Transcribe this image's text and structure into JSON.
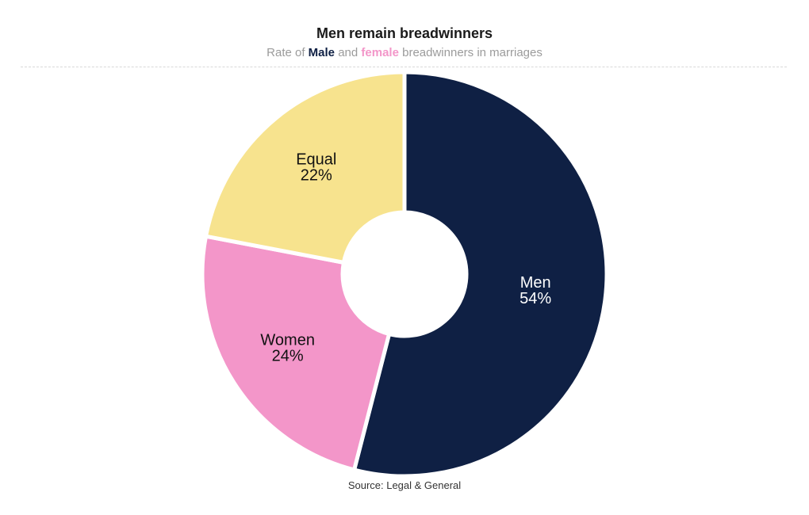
{
  "chart_data": {
    "type": "pie",
    "title": "Men remain breadwinners",
    "subtitle": {
      "prefix": "Rate of ",
      "male": "Male",
      "middle": " and ",
      "female": "female",
      "suffix": " breadwinners in marriages"
    },
    "categories": [
      "Men",
      "Women",
      "Equal"
    ],
    "values": [
      54,
      24,
      22
    ],
    "value_labels": [
      "54%",
      "24%",
      "22%"
    ],
    "colors": [
      "#0f2044",
      "#f396c9",
      "#f7e38e"
    ],
    "label_colors": [
      "#ffffff",
      "#111111",
      "#111111"
    ],
    "source": "Source: Legal & General",
    "style": "donut",
    "legend": "none"
  }
}
